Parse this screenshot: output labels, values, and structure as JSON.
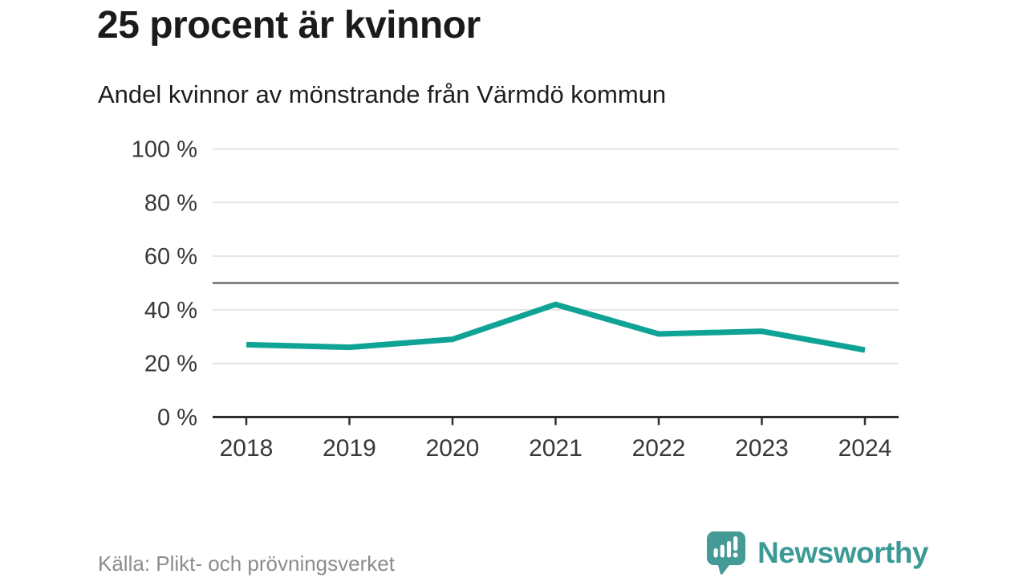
{
  "chart_data": {
    "type": "line",
    "title": "25 procent är kvinnor",
    "subtitle": "Andel kvinnor av mönstrande från Värmdö kommun",
    "categories": [
      "2018",
      "2019",
      "2020",
      "2021",
      "2022",
      "2023",
      "2024"
    ],
    "series": [
      {
        "name": "Andel kvinnor",
        "values": [
          27,
          26,
          29,
          42,
          31,
          32,
          25
        ]
      }
    ],
    "xlabel": "",
    "ylabel": "",
    "ylim": [
      0,
      100
    ],
    "yticks": [
      0,
      20,
      40,
      60,
      80,
      100
    ],
    "ytick_format": "{v} %",
    "reference_line": 50,
    "grid": true,
    "legend": "none"
  },
  "footer": {
    "source": "Källa: Plikt- och prövningsverket"
  },
  "logo": {
    "brand": "Newsworthy",
    "icon": "speech-bubble-bar-chart-exclamation"
  },
  "colors": {
    "line": "#0fa396",
    "reference_line": "#6b6b74",
    "grid": "#e4e4e4",
    "axis": "#2e2e2e",
    "tick_label": "#383838",
    "logo_teal": "#459a96",
    "brand_text": "#3b9a95"
  }
}
